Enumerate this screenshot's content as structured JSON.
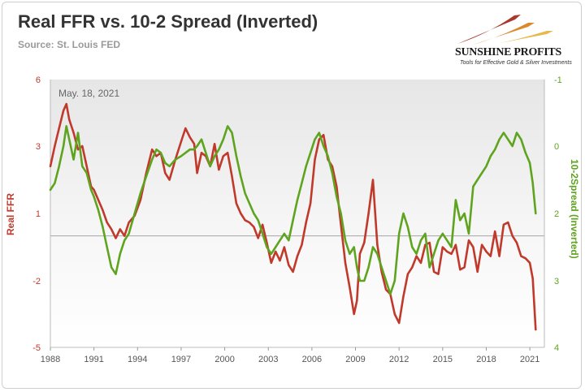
{
  "header": {
    "title": "Real FFR vs. 10-2 Spread (Inverted)",
    "source": "Source: St. Louis FED"
  },
  "logo": {
    "name": "SUNSHINE PROFITS",
    "tagline": "Tools for Effective Gold & Silver Investments"
  },
  "chart_data": {
    "type": "line",
    "annotation": "May. 18, 2021",
    "x_ticks": [
      "1988",
      "1991",
      "1994",
      "1997",
      "2000",
      "2003",
      "2006",
      "2009",
      "2012",
      "2015",
      "2018",
      "2021"
    ],
    "x_range": [
      1988,
      2022
    ],
    "left_axis": {
      "label": "Real FFR",
      "ticks": [
        "6",
        "3",
        "1",
        "-2",
        "-5"
      ],
      "range": [
        -5,
        6
      ],
      "color": "#c0392b"
    },
    "right_axis": {
      "label": "10-2Spread (Inverted)",
      "ticks": [
        "-1",
        "0",
        "2",
        "3",
        "4"
      ],
      "range": [
        -1,
        4
      ],
      "inverted": true,
      "color": "#5ea41e"
    },
    "series": [
      {
        "name": "Real FFR",
        "axis": "left",
        "color": "#c0392b",
        "x": [
          1988.0,
          1988.3,
          1988.6,
          1988.9,
          1989.1,
          1989.3,
          1989.6,
          1989.9,
          1990.2,
          1990.5,
          1990.8,
          1991.0,
          1991.3,
          1991.6,
          1991.9,
          1992.2,
          1992.5,
          1992.8,
          1993.1,
          1993.4,
          1993.8,
          1994.2,
          1994.6,
          1995.0,
          1995.3,
          1995.6,
          1995.9,
          1996.2,
          1996.6,
          1997.0,
          1997.3,
          1997.6,
          1997.9,
          1998.1,
          1998.4,
          1998.7,
          1999.0,
          1999.3,
          1999.6,
          1999.9,
          2000.2,
          2000.5,
          2000.8,
          2001.1,
          2001.4,
          2001.7,
          2002.0,
          2002.3,
          2002.6,
          2002.9,
          2003.2,
          2003.5,
          2003.8,
          2004.1,
          2004.4,
          2004.7,
          2005.0,
          2005.3,
          2005.6,
          2005.9,
          2006.2,
          2006.5,
          2006.8,
          2007.1,
          2007.4,
          2007.7,
          2008.0,
          2008.3,
          2008.6,
          2008.9,
          2009.1,
          2009.3,
          2009.6,
          2009.9,
          2010.2,
          2010.5,
          2010.8,
          2011.1,
          2011.4,
          2011.7,
          2012.0,
          2012.3,
          2012.6,
          2012.9,
          2013.2,
          2013.5,
          2013.8,
          2014.1,
          2014.4,
          2014.7,
          2015.0,
          2015.3,
          2015.6,
          2015.9,
          2016.2,
          2016.5,
          2016.8,
          2017.1,
          2017.4,
          2017.7,
          2018.0,
          2018.3,
          2018.6,
          2018.9,
          2019.2,
          2019.5,
          2019.8,
          2020.1,
          2020.4,
          2020.7,
          2021.0,
          2021.2,
          2021.4
        ],
        "values": [
          2.4,
          3.0,
          3.8,
          4.6,
          4.9,
          4.2,
          3.6,
          2.9,
          3.0,
          2.4,
          1.8,
          1.7,
          1.4,
          1.1,
          0.6,
          0.3,
          -0.1,
          0.3,
          0.0,
          0.6,
          0.9,
          1.4,
          2.2,
          2.9,
          2.7,
          2.8,
          2.2,
          2.0,
          2.6,
          3.2,
          3.8,
          3.4,
          3.1,
          2.2,
          2.8,
          2.7,
          2.4,
          3.1,
          2.3,
          2.7,
          2.8,
          2.1,
          1.3,
          1.0,
          0.7,
          0.6,
          0.4,
          -0.1,
          0.5,
          -0.3,
          -1.2,
          -0.7,
          -1.1,
          -0.5,
          -1.3,
          -1.6,
          -0.9,
          -0.4,
          0.6,
          1.3,
          2.6,
          3.3,
          3.5,
          2.6,
          2.4,
          1.8,
          0.5,
          -1.2,
          -2.3,
          -3.5,
          -2.9,
          -0.8,
          -0.3,
          1.0,
          2.0,
          -0.4,
          -1.6,
          -2.4,
          -2.6,
          -3.5,
          -3.9,
          -2.7,
          -1.7,
          -1.4,
          -0.9,
          -1.2,
          -0.4,
          -0.3,
          -1.6,
          -1.7,
          -0.5,
          -0.7,
          -0.8,
          -0.4,
          -1.5,
          -1.4,
          -0.2,
          -0.5,
          -1.6,
          -0.4,
          -0.7,
          -0.9,
          0.2,
          -0.9,
          0.5,
          0.6,
          0.0,
          -0.3,
          -0.9,
          -1.0,
          -1.2,
          -1.9,
          -4.2
        ]
      },
      {
        "name": "10-2Spread (Inverted)",
        "axis": "right",
        "color": "#5ea41e",
        "x": [
          1988.0,
          1988.3,
          1988.6,
          1988.9,
          1989.1,
          1989.3,
          1989.6,
          1989.9,
          1990.2,
          1990.5,
          1990.8,
          1991.0,
          1991.3,
          1991.6,
          1991.9,
          1992.2,
          1992.5,
          1992.8,
          1993.1,
          1993.4,
          1993.8,
          1994.2,
          1994.6,
          1995.0,
          1995.3,
          1995.6,
          1995.9,
          1996.2,
          1996.6,
          1997.0,
          1997.3,
          1997.6,
          1997.9,
          1998.1,
          1998.4,
          1998.7,
          1999.0,
          1999.3,
          1999.6,
          1999.9,
          2000.2,
          2000.5,
          2000.8,
          2001.1,
          2001.4,
          2001.7,
          2002.0,
          2002.3,
          2002.6,
          2002.9,
          2003.2,
          2003.5,
          2003.8,
          2004.1,
          2004.4,
          2004.7,
          2005.0,
          2005.3,
          2005.6,
          2005.9,
          2006.2,
          2006.5,
          2006.8,
          2007.1,
          2007.4,
          2007.7,
          2008.0,
          2008.3,
          2008.6,
          2008.9,
          2009.1,
          2009.3,
          2009.6,
          2009.9,
          2010.2,
          2010.5,
          2010.8,
          2011.1,
          2011.4,
          2011.7,
          2012.0,
          2012.3,
          2012.6,
          2012.9,
          2013.2,
          2013.5,
          2013.8,
          2014.1,
          2014.4,
          2014.7,
          2015.0,
          2015.3,
          2015.6,
          2015.9,
          2016.2,
          2016.5,
          2016.8,
          2017.1,
          2017.4,
          2017.7,
          2018.0,
          2018.3,
          2018.6,
          2018.9,
          2019.2,
          2019.5,
          2019.8,
          2020.1,
          2020.4,
          2020.7,
          2021.0,
          2021.2,
          2021.4
        ],
        "values": [
          1.3,
          1.1,
          0.6,
          0.0,
          -0.3,
          -0.1,
          0.4,
          -0.2,
          0.6,
          0.8,
          1.3,
          1.5,
          1.9,
          2.2,
          2.5,
          2.8,
          2.9,
          2.6,
          2.4,
          2.3,
          2.0,
          1.4,
          0.9,
          0.4,
          0.1,
          0.2,
          0.5,
          0.6,
          0.4,
          0.3,
          0.2,
          0.1,
          0.1,
          0.0,
          -0.1,
          0.2,
          0.6,
          0.3,
          0.1,
          -0.1,
          -0.3,
          -0.2,
          0.3,
          0.9,
          1.4,
          1.7,
          2.0,
          2.1,
          2.3,
          2.5,
          2.6,
          2.5,
          2.4,
          2.3,
          2.4,
          2.1,
          1.6,
          1.1,
          0.6,
          0.2,
          -0.1,
          -0.2,
          0.0,
          0.3,
          0.8,
          1.5,
          2.0,
          2.4,
          2.6,
          2.5,
          2.8,
          3.0,
          3.0,
          2.8,
          2.5,
          2.6,
          2.8,
          3.0,
          3.2,
          3.0,
          2.3,
          2.0,
          2.2,
          2.5,
          2.6,
          2.4,
          2.3,
          2.8,
          2.6,
          2.4,
          2.3,
          2.4,
          2.5,
          1.6,
          2.1,
          2.0,
          2.3,
          1.2,
          1.0,
          0.8,
          0.6,
          0.3,
          0.1,
          -0.1,
          -0.2,
          -0.1,
          0.0,
          -0.2,
          -0.1,
          0.2,
          0.5,
          1.1,
          2.0
        ]
      }
    ],
    "grid": "horizontal line at real FFR 0"
  }
}
